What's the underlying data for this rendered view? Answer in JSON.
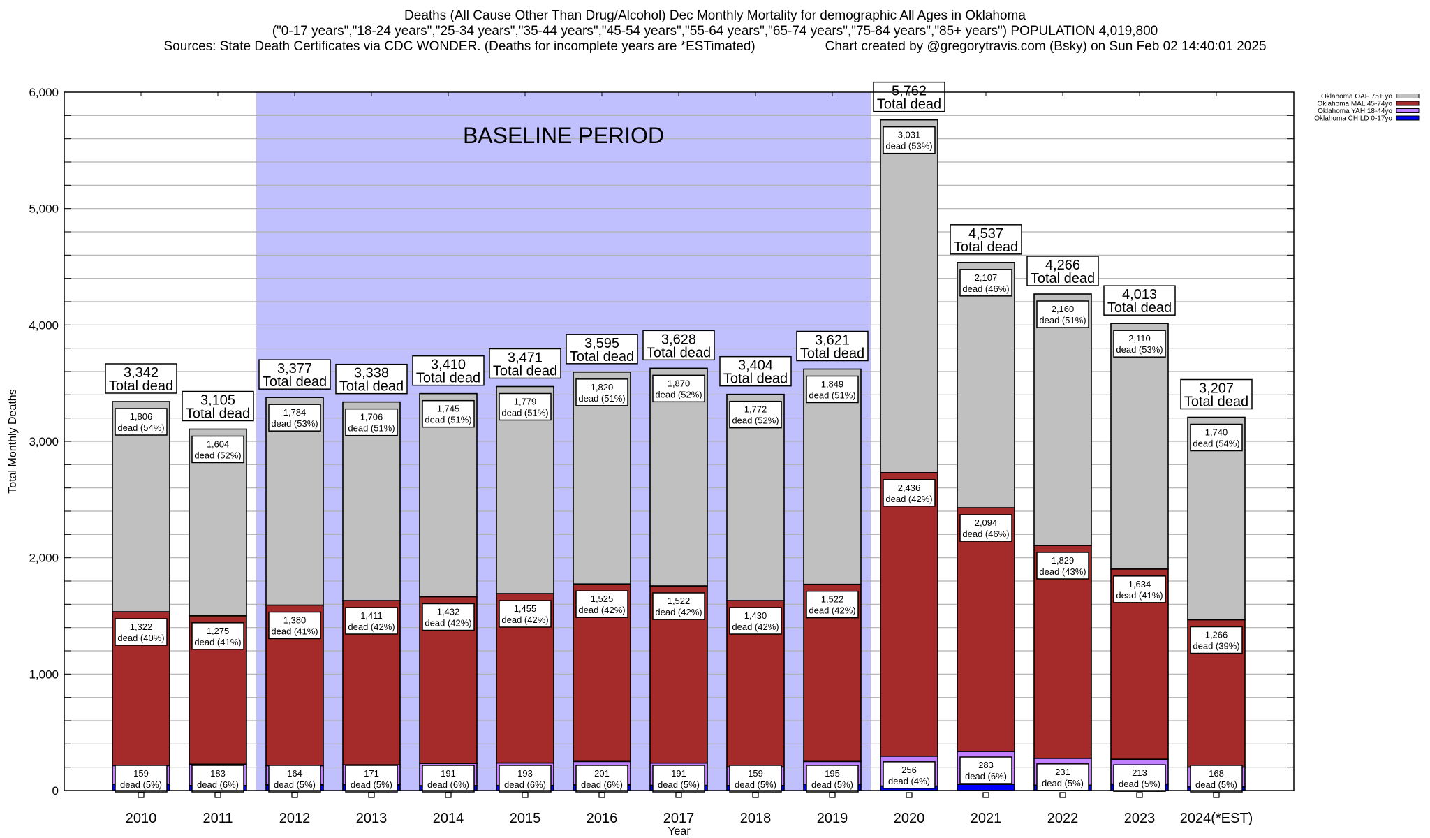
{
  "chart_data": {
    "type": "bar",
    "stacked": true,
    "title": "Deaths (All Cause Other Than Drug/Alcohol) Dec Monthly Mortality for demographic All Ages in Oklahoma",
    "subtitle": "(\"0-17 years\",\"18-24 years\",\"25-34 years\",\"35-44 years\",\"45-54 years\",\"55-64 years\",\"65-74 years\",\"75-84 years\",\"85+ years\") POPULATION 4,019,800",
    "sources": "Sources: State Death Certificates via CDC WONDER. (Deaths for incomplete years are *ESTimated)",
    "credit": "Chart created by @gregorytravis.com (Bsky) on Sun Feb 02 14:40:01 2025",
    "xlabel": "Year",
    "ylabel": "Total Monthly Deaths",
    "ylim": [
      0,
      6000
    ],
    "yticks": [
      0,
      1000,
      2000,
      3000,
      4000,
      5000,
      6000
    ],
    "ytick_labels": [
      "0",
      "1,000",
      "2,000",
      "3,000",
      "4,000",
      "5,000",
      "6,000"
    ],
    "minor_grid_step": 200,
    "grid": true,
    "legend_position": "top-right",
    "annotation": {
      "label": "BASELINE PERIOD",
      "start_category": "2012",
      "end_category": "2019",
      "color": "#c0c0ff"
    },
    "total_label_suffix": "Total dead",
    "segment_label_prefix": "dead",
    "categories": [
      "2010",
      "2011",
      "2012",
      "2013",
      "2014",
      "2015",
      "2016",
      "2017",
      "2018",
      "2019",
      "2020",
      "2021",
      "2022",
      "2023",
      "2024(*EST)"
    ],
    "totals": [
      3342,
      3105,
      3377,
      3338,
      3410,
      3471,
      3595,
      3628,
      3404,
      3621,
      5762,
      4537,
      4266,
      4013,
      3207
    ],
    "totals_labels": [
      "3,342",
      "3,105",
      "3,377",
      "3,338",
      "3,410",
      "3,471",
      "3,595",
      "3,628",
      "3,404",
      "3,621",
      "5,762",
      "4,537",
      "4,266",
      "4,013",
      "3,207"
    ],
    "series": [
      {
        "name": "Oklahoma CHILD 0-17yo",
        "color": "#0000ff",
        "values": [
          55,
          43,
          49,
          50,
          42,
          44,
          49,
          45,
          43,
          55,
          39,
          53,
          46,
          56,
          33
        ],
        "show_label": false
      },
      {
        "name": "Oklahoma YAH 18-44yo",
        "color": "#c080ff",
        "values": [
          159,
          183,
          164,
          171,
          191,
          193,
          201,
          191,
          159,
          195,
          256,
          283,
          231,
          213,
          168
        ],
        "value_labels": [
          "159",
          "183",
          "164",
          "171",
          "191",
          "193",
          "201",
          "191",
          "159",
          "195",
          "256",
          "283",
          "231",
          "213",
          "168"
        ],
        "pct": [
          "5%",
          "6%",
          "5%",
          "5%",
          "6%",
          "6%",
          "6%",
          "5%",
          "5%",
          "5%",
          "4%",
          "6%",
          "5%",
          "5%",
          "5%"
        ],
        "show_label": true
      },
      {
        "name": "Oklahoma MAL 45-74yo",
        "color": "#a52a2a",
        "values": [
          1322,
          1275,
          1380,
          1411,
          1432,
          1455,
          1525,
          1522,
          1430,
          1522,
          2436,
          2094,
          1829,
          1634,
          1266
        ],
        "value_labels": [
          "1,322",
          "1,275",
          "1,380",
          "1,411",
          "1,432",
          "1,455",
          "1,525",
          "1,522",
          "1,430",
          "1,522",
          "2,436",
          "2,094",
          "1,829",
          "1,634",
          "1,266"
        ],
        "pct": [
          "40%",
          "41%",
          "41%",
          "42%",
          "42%",
          "42%",
          "42%",
          "42%",
          "42%",
          "42%",
          "42%",
          "46%",
          "43%",
          "41%",
          "39%"
        ],
        "show_label": true
      },
      {
        "name": "Oklahoma OAF 75+ yo",
        "color": "#c0c0c0",
        "values": [
          1806,
          1604,
          1784,
          1706,
          1745,
          1779,
          1820,
          1870,
          1772,
          1849,
          3031,
          2107,
          2160,
          2110,
          1740
        ],
        "value_labels": [
          "1,806",
          "1,604",
          "1,784",
          "1,706",
          "1,745",
          "1,779",
          "1,820",
          "1,870",
          "1,772",
          "1,849",
          "3,031",
          "2,107",
          "2,160",
          "2,110",
          "1,740"
        ],
        "pct": [
          "54%",
          "52%",
          "53%",
          "51%",
          "51%",
          "51%",
          "51%",
          "52%",
          "52%",
          "51%",
          "53%",
          "46%",
          "51%",
          "53%",
          "54%"
        ],
        "show_label": true
      }
    ],
    "legend_order": [
      "Oklahoma OAF 75+ yo",
      "Oklahoma MAL 45-74yo",
      "Oklahoma YAH 18-44yo",
      "Oklahoma CHILD 0-17yo"
    ]
  }
}
